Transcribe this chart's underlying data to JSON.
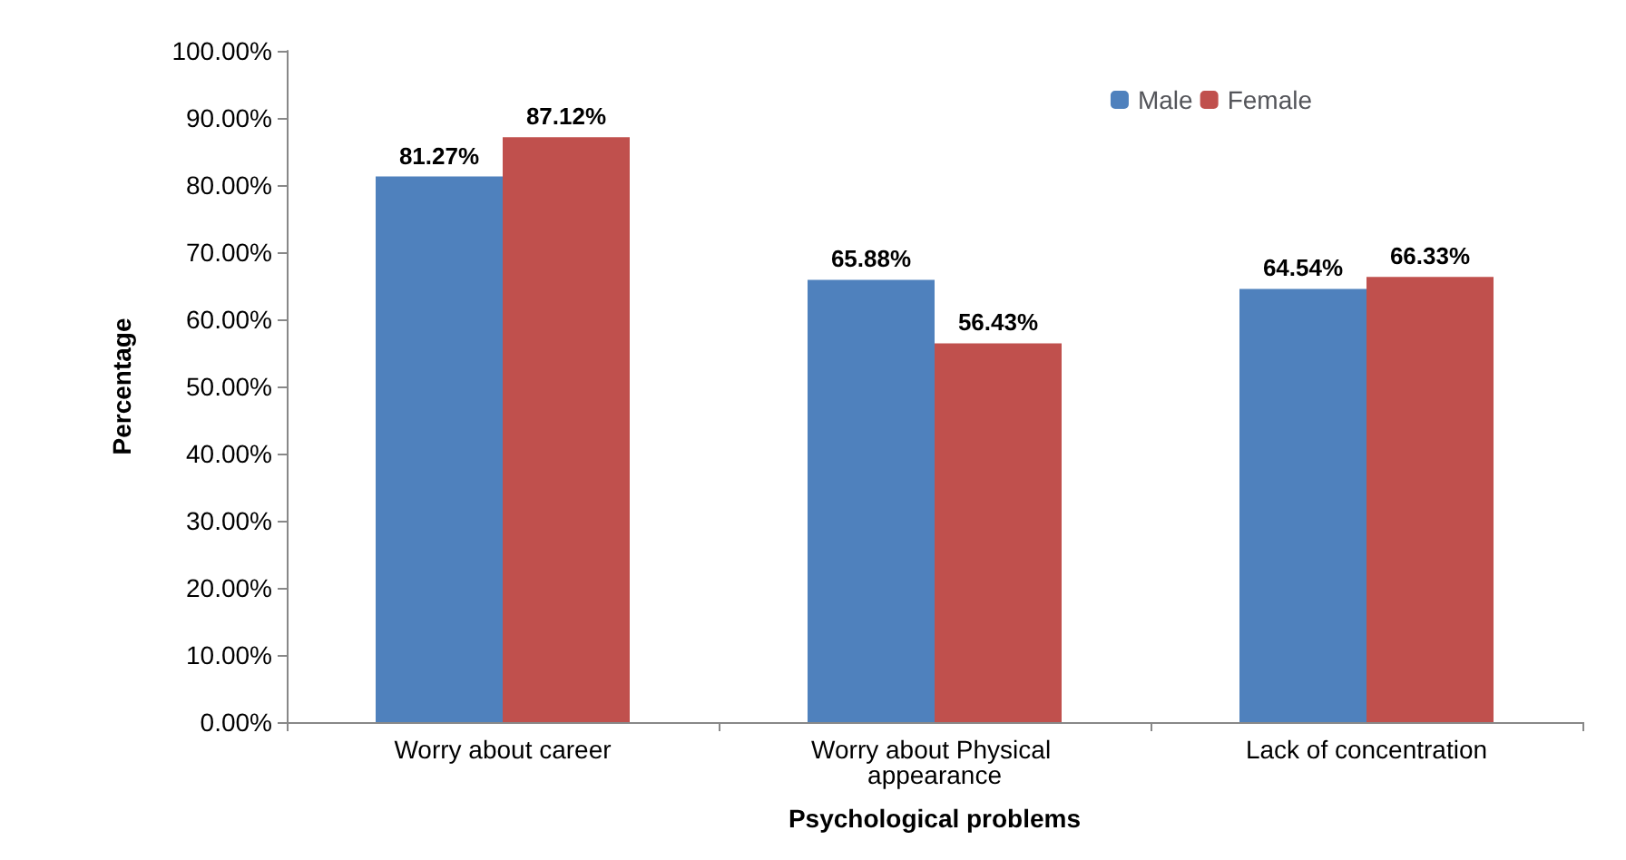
{
  "chart_data": {
    "type": "bar",
    "xlabel": "Psychological problems",
    "ylabel": "Percentage",
    "categories": [
      "Worry about career",
      "Worry about Physical appearance",
      "Lack of concentration"
    ],
    "series": [
      {
        "name": "Male",
        "color": "#4f81bd",
        "values": [
          81.27,
          65.88,
          64.54
        ],
        "value_labels": [
          "81.27%",
          "65.88%",
          "64.54%"
        ]
      },
      {
        "name": "Female",
        "color": "#c0504d",
        "values": [
          87.12,
          56.43,
          66.33
        ],
        "value_labels": [
          "87.12%",
          "56.43%",
          "66.33%"
        ]
      }
    ],
    "ylim": [
      0,
      100
    ],
    "yticks": [
      {
        "value": 0,
        "label": "0.00%"
      },
      {
        "value": 10,
        "label": "10.00%"
      },
      {
        "value": 20,
        "label": "20.00%"
      },
      {
        "value": 30,
        "label": "30.00%"
      },
      {
        "value": 40,
        "label": "40.00%"
      },
      {
        "value": 50,
        "label": "50.00%"
      },
      {
        "value": 60,
        "label": "60.00%"
      },
      {
        "value": 70,
        "label": "70.00%"
      },
      {
        "value": 80,
        "label": "80.00%"
      },
      {
        "value": 90,
        "label": "90.00%"
      },
      {
        "value": 100,
        "label": "100.00%"
      }
    ],
    "grid": false,
    "legend": "top right"
  }
}
